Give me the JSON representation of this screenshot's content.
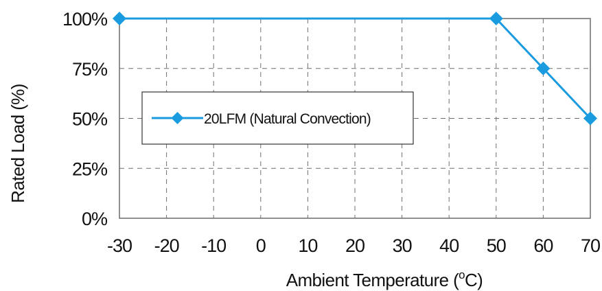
{
  "chart_data": {
    "type": "line",
    "title": "",
    "xlabel": "Ambient Temperature (°C)",
    "xlabel_parts": {
      "before": "Ambient Temperature (",
      "sup": "o",
      "after": "C)"
    },
    "ylabel": "Rated Load (%)",
    "xlim": [
      -30,
      70
    ],
    "ylim": [
      0,
      100
    ],
    "x_ticks": [
      -30,
      -20,
      -10,
      0,
      10,
      20,
      30,
      40,
      50,
      60,
      70
    ],
    "y_ticks": [
      0,
      25,
      50,
      75,
      100
    ],
    "y_tick_labels": [
      "0%",
      "25%",
      "50%",
      "75%",
      "100%"
    ],
    "grid": true,
    "legend_position": "center-left",
    "series": [
      {
        "name": "20LFM (Natural Convection)",
        "color": "#1a9be0",
        "marker": "diamond",
        "points": [
          {
            "x": -30,
            "y": 100
          },
          {
            "x": 50,
            "y": 100
          },
          {
            "x": 60,
            "y": 75
          },
          {
            "x": 70,
            "y": 50
          }
        ]
      }
    ]
  }
}
